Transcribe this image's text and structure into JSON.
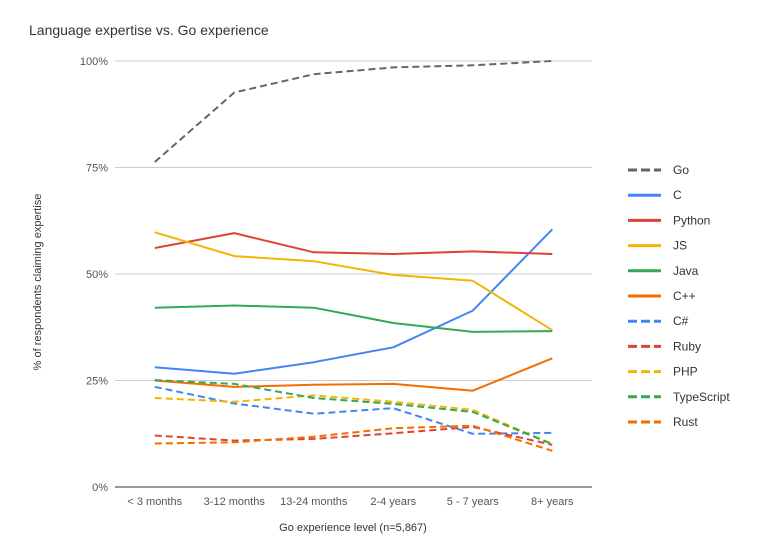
{
  "chart_data": {
    "type": "line",
    "title": "Language expertise vs. Go experience",
    "xlabel": "Go experience level (n=5,867)",
    "ylabel": "% of respondents claiming expertise",
    "categories": [
      "< 3 months",
      "3-12 months",
      "13-24 months",
      "2-4 years",
      "5 - 7 years",
      "8+ years"
    ],
    "y_ticks": [
      {
        "value": 0,
        "label": "0%"
      },
      {
        "value": 25,
        "label": "25%"
      },
      {
        "value": 50,
        "label": "50%"
      },
      {
        "value": 75,
        "label": "75%"
      },
      {
        "value": 100,
        "label": "100%"
      }
    ],
    "ylim": [
      0,
      100
    ],
    "grid": true,
    "legend_position": "right",
    "series": [
      {
        "name": "Go",
        "color": "#666666",
        "dashed": true,
        "values": [
          76.3,
          92.6,
          96.9,
          98.5,
          99.0,
          100.0
        ]
      },
      {
        "name": "C",
        "color": "#4285F4",
        "dashed": false,
        "values": [
          28.1,
          26.6,
          29.3,
          32.8,
          41.4,
          60.5
        ]
      },
      {
        "name": "Python",
        "color": "#DB4437",
        "dashed": false,
        "values": [
          56.1,
          59.6,
          55.1,
          54.7,
          55.3,
          54.7
        ]
      },
      {
        "name": "JS",
        "color": "#F4B400",
        "dashed": false,
        "values": [
          59.8,
          54.2,
          53.0,
          49.8,
          48.4,
          36.8
        ]
      },
      {
        "name": "Java",
        "color": "#34A853",
        "dashed": false,
        "values": [
          42.1,
          42.6,
          42.1,
          38.5,
          36.4,
          36.6
        ]
      },
      {
        "name": "C++",
        "color": "#F46D01",
        "dashed": false,
        "values": [
          25.0,
          23.5,
          24.0,
          24.2,
          22.6,
          30.2
        ]
      },
      {
        "name": "C#",
        "color": "#4285F4",
        "dashed": true,
        "values": [
          23.5,
          19.6,
          17.2,
          18.5,
          12.5,
          12.7
        ]
      },
      {
        "name": "Ruby",
        "color": "#DB4437",
        "dashed": true,
        "values": [
          12.1,
          10.9,
          11.3,
          12.6,
          14.1,
          9.9
        ]
      },
      {
        "name": "PHP",
        "color": "#F4B400",
        "dashed": true,
        "values": [
          20.9,
          20.0,
          21.5,
          20.0,
          18.1,
          10.1
        ]
      },
      {
        "name": "TypeScript",
        "color": "#34A853",
        "dashed": true,
        "values": [
          25.1,
          24.2,
          20.9,
          19.5,
          17.6,
          10.1
        ]
      },
      {
        "name": "Rust",
        "color": "#F46D01",
        "dashed": true,
        "values": [
          10.2,
          10.5,
          11.8,
          13.8,
          14.4,
          8.5
        ]
      }
    ]
  }
}
